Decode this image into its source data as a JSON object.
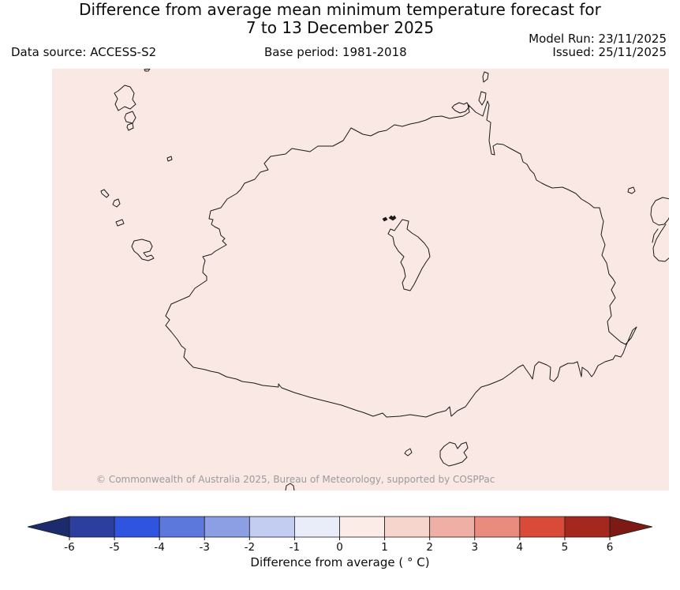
{
  "header": {
    "title_line1": "Difference from average mean minimum temperature forecast for",
    "title_line2": "7 to 13 December 2025",
    "model_run": "Model Run: 23/11/2025",
    "issued": "Issued: 25/11/2025",
    "data_source": "Data source: ACCESS-S2",
    "base_period": "Base period: 1981-2018"
  },
  "map": {
    "region": "Viti Levu and surrounding islands, Fiji",
    "background_color": "#f9e8e4",
    "coastline_color": "#1a1a1a",
    "copyright": "© Commonwealth of Australia 2025, Bureau of Meteorology, supported by COSPPac"
  },
  "colorbar": {
    "label": "Difference from average ( ° C)",
    "ticks": [
      "-6",
      "-5",
      "-4",
      "-3",
      "-2",
      "-1",
      "0",
      "1",
      "2",
      "3",
      "4",
      "5",
      "6"
    ],
    "arrow_left_color": "#1c2b6d",
    "arrow_right_color": "#7c1a13",
    "outline_color": "#1c1c1c",
    "segments": [
      {
        "from": -6,
        "to": -5,
        "color": "#2c3f9f"
      },
      {
        "from": -5,
        "to": -4,
        "color": "#2f55e0"
      },
      {
        "from": -4,
        "to": -3,
        "color": "#5d78dc"
      },
      {
        "from": -3,
        "to": -2,
        "color": "#8c9fe4"
      },
      {
        "from": -2,
        "to": -1,
        "color": "#c3cdf1"
      },
      {
        "from": -1,
        "to": 0,
        "color": "#e9ecf9"
      },
      {
        "from": 0,
        "to": 1,
        "color": "#fbece7"
      },
      {
        "from": 1,
        "to": 2,
        "color": "#f6d5cc"
      },
      {
        "from": 2,
        "to": 3,
        "color": "#efafa5"
      },
      {
        "from": 3,
        "to": 4,
        "color": "#e98b7d"
      },
      {
        "from": 4,
        "to": 5,
        "color": "#d94b38"
      },
      {
        "from": 5,
        "to": 6,
        "color": "#a5281e"
      }
    ]
  },
  "chart_data": {
    "type": "heatmap",
    "title": "Difference from average mean minimum temperature forecast for 7 to 13 December 2025",
    "region": "Viti Levu and surrounding islands, Fiji",
    "field": "mean minimum temperature anomaly forecast",
    "units": "°C",
    "colorbar_label": "Difference from average (°C)",
    "colorbar_ticks": [
      -6,
      -5,
      -4,
      -3,
      -2,
      -1,
      0,
      1,
      2,
      3,
      4,
      5,
      6
    ],
    "colorbar_range": [
      -6,
      6
    ],
    "legend_position": "bottom",
    "observed_field_value": "entire mapped region shaded in the 0 to +1 °C anomaly bin (pale pink)",
    "data_source": "ACCESS-S2",
    "base_period": "1981-2018",
    "model_run_date": "23/11/2025",
    "issued_date": "25/11/2025"
  }
}
